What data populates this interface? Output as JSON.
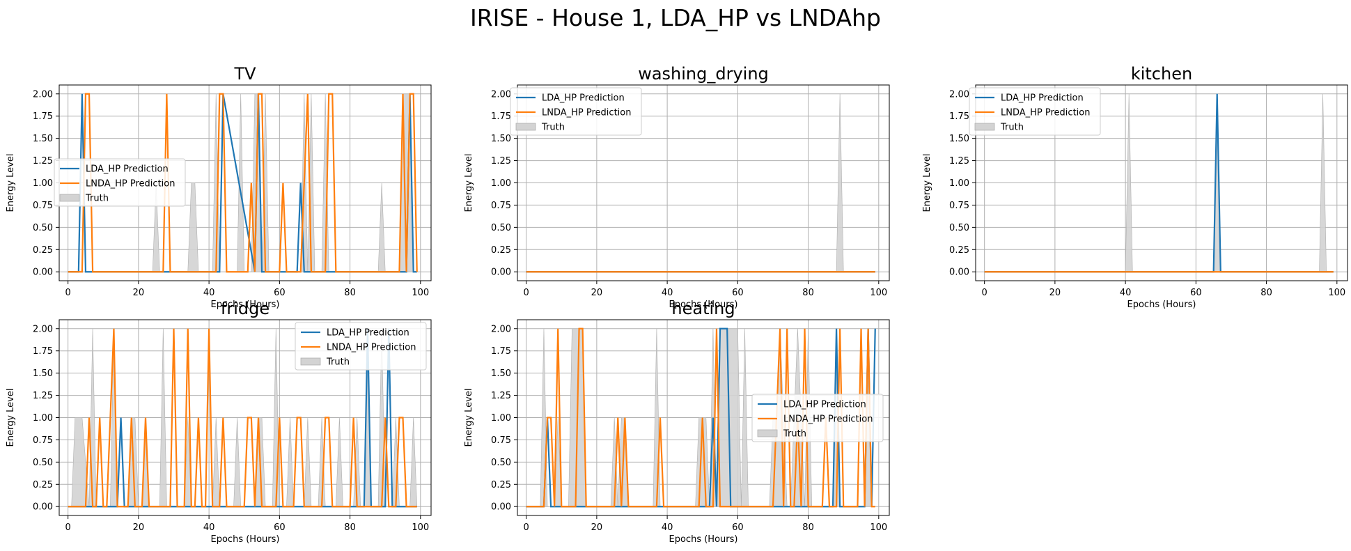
{
  "figure": {
    "title": "IRISE - House 1, LDA_HP vs LNDAhp"
  },
  "colors": {
    "lda": "#1f77b4",
    "lnda": "#ff7f0e",
    "truth_fill": "#d3d3d3",
    "truth_edge": "#b0b0b0",
    "grid": "#b0b0b0"
  },
  "chart_data": [
    {
      "type": "line",
      "title": "TV",
      "xlabel": "Epochs (Hours)",
      "ylabel": "Energy Level",
      "xlim": [
        -2.5,
        103
      ],
      "ylim": [
        -0.1,
        2.1
      ],
      "xticks": [
        0,
        20,
        40,
        60,
        80,
        100
      ],
      "yticks": [
        "0.00",
        "0.25",
        "0.50",
        "0.75",
        "1.00",
        "1.25",
        "1.50",
        "1.75",
        "2.00"
      ],
      "grid": true,
      "legend": {
        "position": "center-left",
        "entries": [
          "LDA_HP Prediction",
          "LNDA_HP Prediction",
          "Truth"
        ]
      },
      "series": [
        {
          "name": "LDA_HP Prediction",
          "x": [
            0,
            3,
            4,
            5,
            6,
            43,
            44,
            53,
            54,
            55,
            65,
            66,
            67,
            96,
            97,
            98,
            99
          ],
          "y": [
            0,
            0,
            2,
            0,
            0,
            0,
            2,
            0,
            2,
            0,
            0,
            1,
            0,
            0,
            2,
            0,
            0
          ]
        },
        {
          "name": "LNDA_HP Prediction",
          "x": [
            0,
            4,
            5,
            6,
            7,
            27,
            28,
            29,
            42,
            43,
            44,
            45,
            51,
            52,
            53,
            54,
            55,
            56,
            60,
            61,
            62,
            66,
            67,
            68,
            69,
            73,
            74,
            75,
            76,
            94,
            95,
            96,
            97,
            98,
            99
          ],
          "y": [
            0,
            0,
            2,
            2,
            0,
            0,
            2,
            0,
            0,
            2,
            2,
            0,
            0,
            1,
            0,
            2,
            2,
            0,
            0,
            1,
            0,
            0,
            1,
            2,
            0,
            0,
            2,
            2,
            0,
            0,
            2,
            0,
            2,
            2,
            0
          ]
        },
        {
          "name": "Truth",
          "x": [
            0,
            24,
            25,
            26,
            34,
            35,
            36,
            37,
            38,
            41,
            42,
            43,
            48,
            49,
            50,
            52,
            53,
            54,
            55,
            56,
            57,
            66,
            67,
            68,
            69,
            70,
            72,
            73,
            74,
            88,
            89,
            90,
            94,
            95,
            96,
            97,
            98,
            99
          ],
          "y": [
            0,
            0,
            1,
            0,
            0,
            1,
            1,
            0,
            0,
            0,
            2,
            0,
            0,
            2,
            0,
            0,
            2,
            2,
            0,
            2,
            0,
            0,
            2,
            0,
            2,
            0,
            0,
            2,
            0,
            0,
            1,
            0,
            0,
            2,
            2,
            2,
            0,
            0
          ]
        }
      ]
    },
    {
      "type": "line",
      "title": "washing_drying",
      "xlabel": "Epochs (Hours)",
      "ylabel": "Energy Level",
      "xlim": [
        -2.5,
        103
      ],
      "ylim": [
        -0.1,
        2.1
      ],
      "xticks": [
        0,
        20,
        40,
        60,
        80,
        100
      ],
      "yticks": [
        "0.00",
        "0.25",
        "0.50",
        "0.75",
        "1.00",
        "1.25",
        "1.50",
        "1.75",
        "2.00"
      ],
      "grid": true,
      "legend": {
        "position": "upper-left",
        "entries": [
          "LDA_HP Prediction",
          "LNDA_HP Prediction",
          "Truth"
        ]
      },
      "series": [
        {
          "name": "LDA_HP Prediction",
          "x": [
            0,
            99
          ],
          "y": [
            0,
            0
          ]
        },
        {
          "name": "LNDA_HP Prediction",
          "x": [
            0,
            99
          ],
          "y": [
            0,
            0
          ]
        },
        {
          "name": "Truth",
          "x": [
            0,
            88,
            89,
            90,
            99
          ],
          "y": [
            0,
            0,
            2,
            0,
            0
          ]
        }
      ]
    },
    {
      "type": "line",
      "title": "kitchen",
      "xlabel": "Epochs (Hours)",
      "ylabel": "Energy Level",
      "xlim": [
        -2.5,
        103
      ],
      "ylim": [
        -0.1,
        2.1
      ],
      "xticks": [
        0,
        20,
        40,
        60,
        80,
        100
      ],
      "yticks": [
        "0.00",
        "0.25",
        "0.50",
        "0.75",
        "1.00",
        "1.25",
        "1.50",
        "1.75",
        "2.00"
      ],
      "grid": true,
      "legend": {
        "position": "upper-left",
        "entries": [
          "LDA_HP Prediction",
          "LNDA_HP Prediction",
          "Truth"
        ]
      },
      "series": [
        {
          "name": "LDA_HP Prediction",
          "x": [
            0,
            65,
            66,
            67,
            99
          ],
          "y": [
            0,
            0,
            2,
            0,
            0
          ]
        },
        {
          "name": "LNDA_HP Prediction",
          "x": [
            0,
            99
          ],
          "y": [
            0,
            0
          ]
        },
        {
          "name": "Truth",
          "x": [
            0,
            40,
            41,
            42,
            65,
            66,
            67,
            95,
            96,
            97,
            99
          ],
          "y": [
            0,
            0,
            2,
            0,
            0,
            2,
            0,
            0,
            2,
            0,
            0
          ]
        }
      ]
    },
    {
      "type": "line",
      "title": "fridge",
      "xlabel": "Epochs (Hours)",
      "ylabel": "Energy Level",
      "xlim": [
        -2.5,
        103
      ],
      "ylim": [
        -0.1,
        2.1
      ],
      "xticks": [
        0,
        20,
        40,
        60,
        80,
        100
      ],
      "yticks": [
        "0.00",
        "0.25",
        "0.50",
        "0.75",
        "1.00",
        "1.25",
        "1.50",
        "1.75",
        "2.00"
      ],
      "grid": true,
      "legend": {
        "position": "upper-right",
        "entries": [
          "LDA_HP Prediction",
          "LNDA_HP Prediction",
          "Truth"
        ]
      },
      "series": [
        {
          "name": "LDA_HP Prediction",
          "x": [
            0,
            14,
            15,
            16,
            84,
            85,
            86,
            90,
            91,
            92,
            99
          ],
          "y": [
            0,
            0,
            1,
            0,
            0,
            2,
            0,
            0,
            2,
            0,
            0
          ]
        },
        {
          "name": "LNDA_HP Prediction",
          "x": [
            0,
            5,
            6,
            7,
            8,
            9,
            10,
            11,
            12,
            13,
            14,
            15,
            17,
            18,
            19,
            21,
            22,
            23,
            29,
            30,
            31,
            33,
            34,
            35,
            36,
            37,
            38,
            39,
            40,
            41,
            43,
            44,
            45,
            50,
            51,
            52,
            53,
            54,
            55,
            56,
            59,
            60,
            61,
            64,
            65,
            66,
            67,
            72,
            73,
            74,
            75,
            80,
            81,
            82,
            89,
            90,
            91,
            93,
            94,
            95,
            96,
            99
          ],
          "y": [
            0,
            0,
            1,
            0,
            0,
            1,
            0,
            0,
            1,
            2,
            0,
            0,
            0,
            1,
            0,
            0,
            1,
            0,
            0,
            2,
            0,
            0,
            2,
            0,
            0,
            1,
            0,
            0,
            2,
            0,
            0,
            1,
            0,
            0,
            1,
            1,
            0,
            1,
            0,
            0,
            0,
            1,
            0,
            0,
            1,
            1,
            0,
            0,
            1,
            1,
            0,
            0,
            1,
            0,
            0,
            1,
            0,
            0,
            1,
            1,
            0,
            0
          ]
        },
        {
          "name": "Truth",
          "x": [
            0,
            1,
            2,
            3,
            4,
            6,
            7,
            8,
            12,
            13,
            14,
            17,
            18,
            19,
            20,
            21,
            22,
            23,
            26,
            27,
            28,
            33,
            34,
            35,
            41,
            42,
            43,
            47,
            48,
            49,
            53,
            54,
            55,
            56,
            58,
            59,
            60,
            62,
            63,
            64,
            67,
            68,
            69,
            71,
            72,
            73,
            76,
            77,
            78,
            81,
            82,
            83,
            84,
            85,
            86,
            88,
            89,
            90,
            92,
            93,
            94,
            97,
            98,
            99
          ],
          "y": [
            0,
            0,
            1,
            1,
            1,
            0,
            2,
            0,
            0,
            2,
            0,
            0,
            1,
            1,
            0,
            0,
            1,
            0,
            0,
            2,
            0,
            0,
            1,
            0,
            0,
            1,
            0,
            0,
            1,
            0,
            0,
            1,
            1,
            0,
            0,
            2,
            0,
            0,
            1,
            0,
            0,
            1,
            0,
            0,
            1,
            0,
            0,
            1,
            0,
            0,
            1,
            0,
            0,
            2,
            0,
            0,
            2,
            0,
            0,
            1,
            0,
            0,
            1,
            0
          ]
        }
      ]
    },
    {
      "type": "line",
      "title": "heating",
      "xlabel": "Epochs (Hours)",
      "ylabel": "Energy Level",
      "xlim": [
        -2.5,
        103
      ],
      "ylim": [
        -0.1,
        2.1
      ],
      "xticks": [
        0,
        20,
        40,
        60,
        80,
        100
      ],
      "yticks": [
        "0.00",
        "0.25",
        "0.50",
        "0.75",
        "1.00",
        "1.25",
        "1.50",
        "1.75",
        "2.00"
      ],
      "grid": true,
      "legend": {
        "position": "center-right",
        "entries": [
          "LDA_HP Prediction",
          "LNDA_HP Prediction",
          "Truth"
        ]
      },
      "series": [
        {
          "name": "LDA_HP Prediction",
          "x": [
            0,
            5,
            6,
            7,
            52,
            53,
            54,
            55,
            56,
            57,
            58,
            59,
            87,
            88,
            89,
            90,
            96,
            97,
            98,
            99
          ],
          "y": [
            0,
            0,
            1,
            0,
            0,
            1,
            0,
            2,
            2,
            2,
            0,
            0,
            0,
            2,
            0,
            0,
            0,
            2,
            0,
            2
          ]
        },
        {
          "name": "LNDA_HP Prediction",
          "x": [
            0,
            5,
            6,
            7,
            8,
            9,
            10,
            14,
            15,
            16,
            17,
            25,
            26,
            27,
            28,
            29,
            30,
            37,
            38,
            39,
            49,
            50,
            51,
            53,
            54,
            55,
            70,
            71,
            72,
            73,
            74,
            75,
            76,
            77,
            78,
            79,
            80,
            84,
            85,
            86,
            88,
            89,
            90,
            94,
            95,
            96,
            97,
            98,
            99
          ],
          "y": [
            0,
            0,
            1,
            1,
            0,
            2,
            0,
            0,
            2,
            2,
            0,
            0,
            1,
            0,
            1,
            0,
            0,
            0,
            1,
            0,
            0,
            1,
            0,
            0,
            2,
            0,
            0,
            1,
            2,
            0,
            2,
            0,
            0,
            1,
            0,
            2,
            0,
            0,
            1,
            0,
            0,
            2,
            0,
            0,
            2,
            0,
            2,
            0,
            0
          ]
        },
        {
          "name": "Truth",
          "x": [
            0,
            4,
            5,
            6,
            8,
            9,
            10,
            12,
            13,
            14,
            16,
            17,
            18,
            24,
            25,
            26,
            27,
            28,
            29,
            36,
            37,
            38,
            48,
            49,
            50,
            51,
            52,
            53,
            54,
            55,
            56,
            57,
            58,
            59,
            60,
            61,
            62,
            63,
            69,
            70,
            71,
            72,
            73,
            74,
            75,
            76,
            77,
            78,
            79,
            80,
            81,
            82,
            87,
            88,
            89,
            90,
            96,
            97,
            98,
            99
          ],
          "y": [
            0,
            0,
            2,
            0,
            0,
            1,
            0,
            0,
            2,
            2,
            2,
            0,
            0,
            0,
            1,
            0,
            1,
            1,
            0,
            0,
            2,
            0,
            0,
            1,
            1,
            1,
            0,
            2,
            0,
            2,
            2,
            2,
            2,
            2,
            2,
            0,
            2,
            0,
            0,
            1,
            1,
            2,
            1,
            0,
            0,
            1,
            2,
            1,
            0,
            2,
            0,
            0,
            0,
            2,
            0,
            0,
            0,
            2,
            0,
            0
          ]
        }
      ]
    }
  ]
}
